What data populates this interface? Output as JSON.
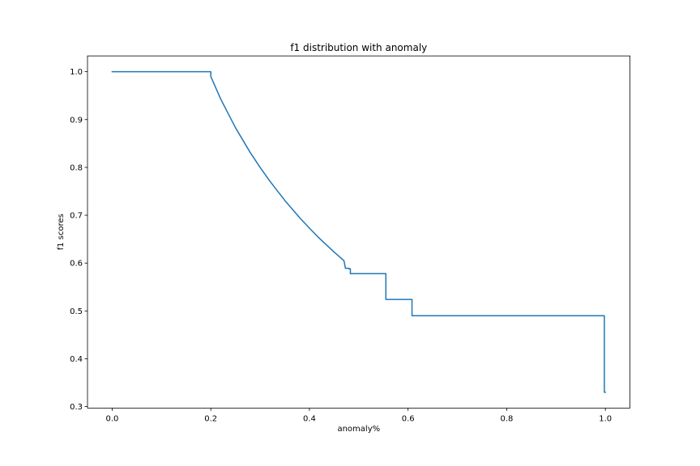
{
  "chart_data": {
    "type": "line",
    "title": "f1 distribution with anomaly",
    "xlabel": "anomaly%",
    "ylabel": "f1 scores",
    "xlim": [
      -0.05,
      1.05
    ],
    "ylim": [
      0.297,
      1.033
    ],
    "xticks": [
      0.0,
      0.2,
      0.4,
      0.6,
      0.8,
      1.0
    ],
    "xtick_labels": [
      "0.0",
      "0.2",
      "0.4",
      "0.6",
      "0.8",
      "1.0"
    ],
    "yticks": [
      0.3,
      0.4,
      0.5,
      0.6,
      0.7,
      0.8,
      0.9,
      1.0
    ],
    "ytick_labels": [
      "0.3",
      "0.4",
      "0.5",
      "0.6",
      "0.7",
      "0.8",
      "0.9",
      "1.0"
    ],
    "grid": false,
    "legend": "none",
    "series": [
      {
        "color": "#1f77b4",
        "x": [
          0.0,
          0.2,
          0.2,
          0.22,
          0.25,
          0.28,
          0.3,
          0.32,
          0.35,
          0.38,
          0.4,
          0.42,
          0.45,
          0.47,
          0.473,
          0.48,
          0.48,
          0.483,
          0.483,
          0.555,
          0.555,
          0.608,
          0.608,
          0.998,
          0.998,
          1.0
        ],
        "y": [
          1.0,
          1.0,
          0.99,
          0.943,
          0.883,
          0.831,
          0.8,
          0.771,
          0.731,
          0.695,
          0.673,
          0.652,
          0.623,
          0.605,
          0.589,
          0.589,
          0.588,
          0.588,
          0.578,
          0.578,
          0.524,
          0.524,
          0.49,
          0.49,
          0.33,
          0.33
        ]
      }
    ]
  }
}
